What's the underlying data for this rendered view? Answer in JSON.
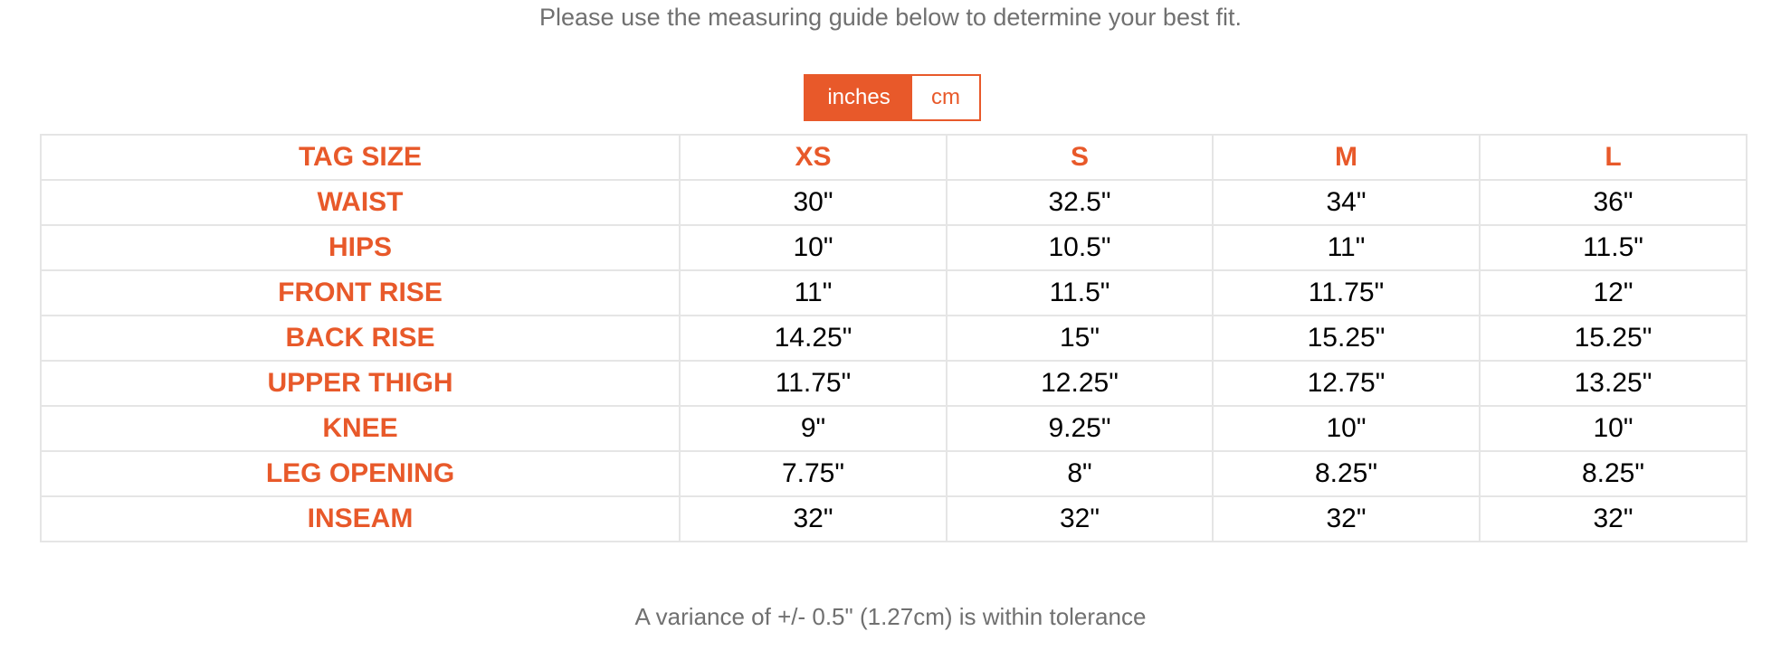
{
  "intro_text": "Please use the measuring guide below to determine your best fit.",
  "unit_toggle": {
    "options": [
      "inches",
      "cm"
    ],
    "selected": "inches"
  },
  "size_table": {
    "header": [
      "TAG SIZE",
      "XS",
      "S",
      "M",
      "L"
    ],
    "rows": [
      {
        "label": "WAIST",
        "values": [
          "30\"",
          "32.5\"",
          "34\"",
          "36\""
        ]
      },
      {
        "label": "HIPS",
        "values": [
          "10\"",
          "10.5\"",
          "11\"",
          "11.5\""
        ]
      },
      {
        "label": "FRONT RISE",
        "values": [
          "11\"",
          "11.5\"",
          "11.75\"",
          "12\""
        ]
      },
      {
        "label": "BACK RISE",
        "values": [
          "14.25\"",
          "15\"",
          "15.25\"",
          "15.25\""
        ]
      },
      {
        "label": "UPPER THIGH",
        "values": [
          "11.75\"",
          "12.25\"",
          "12.75\"",
          "13.25\""
        ]
      },
      {
        "label": "KNEE",
        "values": [
          "9\"",
          "9.25\"",
          "10\"",
          "10\""
        ]
      },
      {
        "label": "LEG OPENING",
        "values": [
          "7.75\"",
          "8\"",
          "8.25\"",
          "8.25\""
        ]
      },
      {
        "label": "INSEAM",
        "values": [
          "32\"",
          "32\"",
          "32\"",
          "32\""
        ]
      }
    ]
  },
  "tolerance_note": "A variance of +/- 0.5\" (1.27cm) is within tolerance",
  "colors": {
    "accent": "#e8592a",
    "muted_text": "#707070",
    "border": "#e5e5e5"
  }
}
